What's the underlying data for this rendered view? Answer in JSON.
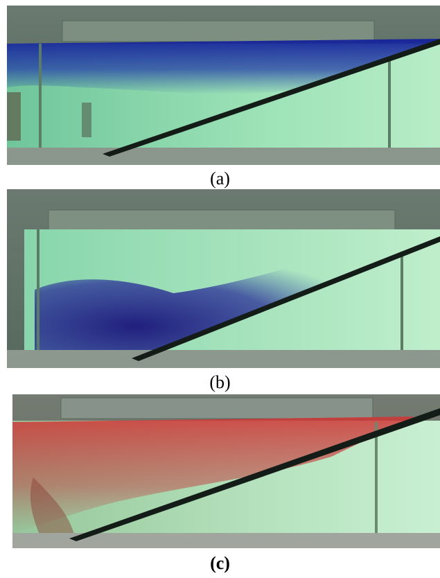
{
  "panels": [
    {
      "id": "a",
      "caption": "(a)",
      "dye": "blue",
      "dye_color": "#1a2aa0"
    },
    {
      "id": "b",
      "caption": "(b)",
      "dye": "blue",
      "dye_color": "#22208a"
    },
    {
      "id": "c",
      "caption": "(c)",
      "dye": "red",
      "dye_color": "#c83030"
    }
  ],
  "colors": {
    "water": "#8fd8ad",
    "frame": "#5d7a66",
    "slope": "#141c18",
    "floor": "#9aa39a"
  }
}
